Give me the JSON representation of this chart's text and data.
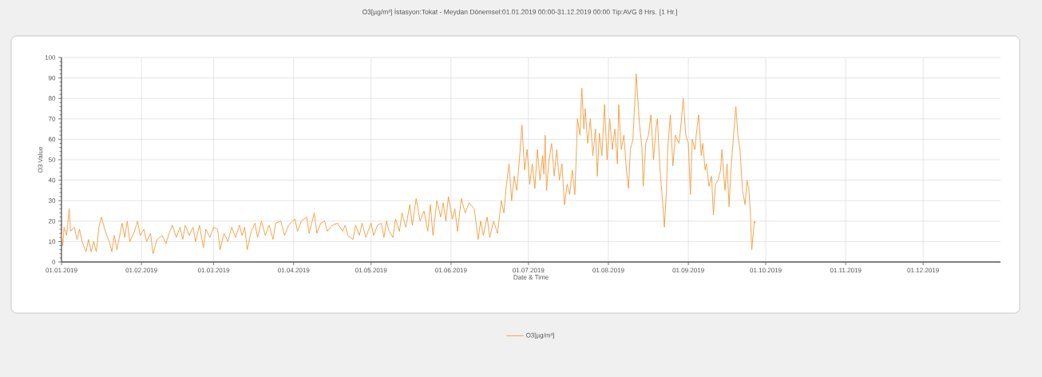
{
  "chart_data": {
    "type": "line",
    "title": "O3[µg/m³] İstasyon:Tokat - Meydan Dönemsel:01.01.2019 00:00-31.12.2019 00:00 Tip:AVG 8 Hrs. [1 Hr.]",
    "xlabel": "Date & Time",
    "ylabel": "O3 Value",
    "xlim": [
      "2019-01-01",
      "2019-12-31"
    ],
    "ylim": [
      0,
      100
    ],
    "xticks": [
      {
        "value": "2019-01-01",
        "label": "01.01.2019"
      },
      {
        "value": "2019-02-01",
        "label": "01.02.2019"
      },
      {
        "value": "2019-03-01",
        "label": "01.03.2019"
      },
      {
        "value": "2019-04-01",
        "label": "01.04.2019"
      },
      {
        "value": "2019-05-01",
        "label": "01.05.2019"
      },
      {
        "value": "2019-06-01",
        "label": "01.06.2019"
      },
      {
        "value": "2019-07-01",
        "label": "01.07.2019"
      },
      {
        "value": "2019-08-01",
        "label": "01.08.2019"
      },
      {
        "value": "2019-09-01",
        "label": "01.09.2019"
      },
      {
        "value": "2019-10-01",
        "label": "01.10.2019"
      },
      {
        "value": "2019-11-01",
        "label": "01.11.2019"
      },
      {
        "value": "2019-12-01",
        "label": "01.12.2019"
      }
    ],
    "yticks": [
      0,
      10,
      20,
      30,
      40,
      50,
      60,
      70,
      80,
      90,
      100
    ],
    "grid": true,
    "legend": "bottom",
    "x": [
      "2019-01-01",
      "2019-01-01T12:00",
      "2019-01-02",
      "2019-01-03",
      "2019-01-04",
      "2019-01-04T12:00",
      "2019-01-06",
      "2019-01-07",
      "2019-01-08",
      "2019-01-09",
      "2019-01-10T12:00",
      "2019-01-11T12:00",
      "2019-01-12T12:00",
      "2019-01-13T12:00",
      "2019-01-14T12:00",
      "2019-01-15T12:00",
      "2019-01-16T12:00",
      "2019-01-18",
      "2019-01-19T12:00",
      "2019-01-20T12:00",
      "2019-01-21T12:00",
      "2019-01-22T12:00",
      "2019-01-24T12:00",
      "2019-01-25T12:00",
      "2019-01-26T12:00",
      "2019-01-27T12:00",
      "2019-01-29",
      "2019-01-30T12:00",
      "2019-01-31T12:00",
      "2019-02-02",
      "2019-02-03",
      "2019-02-04T12:00",
      "2019-02-05T12:00",
      "2019-02-07",
      "2019-02-09",
      "2019-02-10T12:00",
      "2019-02-12",
      "2019-02-13",
      "2019-02-14T12:00",
      "2019-02-16",
      "2019-02-17",
      "2019-02-18",
      "2019-02-19T12:00",
      "2019-02-21",
      "2019-02-22",
      "2019-02-23T12:00",
      "2019-02-25",
      "2019-02-26",
      "2019-02-27T12:00",
      "2019-03-01",
      "2019-03-02T12:00",
      "2019-03-03T12:00",
      "2019-03-05",
      "2019-03-06T12:00",
      "2019-03-08",
      "2019-03-09T12:00",
      "2019-03-11",
      "2019-03-12",
      "2019-03-13",
      "2019-03-14",
      "2019-03-15T12:00",
      "2019-03-17",
      "2019-03-18",
      "2019-03-19T12:00",
      "2019-03-21",
      "2019-03-22T12:00",
      "2019-03-24",
      "2019-03-25",
      "2019-03-27",
      "2019-03-28T12:00",
      "2019-03-30",
      "2019-04-01T12:00",
      "2019-04-02T12:00",
      "2019-04-04",
      "2019-04-06",
      "2019-04-07",
      "2019-04-09",
      "2019-04-10",
      "2019-04-11T12:00",
      "2019-04-13",
      "2019-04-14",
      "2019-04-16",
      "2019-04-18",
      "2019-04-20",
      "2019-04-21",
      "2019-04-22",
      "2019-04-24",
      "2019-04-25",
      "2019-04-26T12:00",
      "2019-04-27T12:00",
      "2019-04-29",
      "2019-05-01",
      "2019-05-02",
      "2019-05-03T12:00",
      "2019-05-05",
      "2019-05-06",
      "2019-05-07",
      "2019-05-08",
      "2019-05-09T12:00",
      "2019-05-10T12:00",
      "2019-05-12",
      "2019-05-13",
      "2019-05-14T12:00",
      "2019-05-16",
      "2019-05-17",
      "2019-05-18T12:00",
      "2019-05-20",
      "2019-05-21T12:00",
      "2019-05-23",
      "2019-05-24",
      "2019-05-25",
      "2019-05-26T12:00",
      "2019-05-28",
      "2019-05-29",
      "2019-05-30",
      "2019-05-31",
      "2019-06-01T12:00",
      "2019-06-02T12:00",
      "2019-06-03T12:00",
      "2019-06-05",
      "2019-06-06T12:00",
      "2019-06-08",
      "2019-06-10",
      "2019-06-11T12:00",
      "2019-06-12T12:00",
      "2019-06-13T12:00",
      "2019-06-15",
      "2019-06-16",
      "2019-06-17T12:00",
      "2019-06-19",
      "2019-06-20T12:00",
      "2019-06-21T12:00",
      "2019-06-22T12:00",
      "2019-06-23T12:00",
      "2019-06-24T12:00",
      "2019-06-25T12:00",
      "2019-06-26T12:00",
      "2019-06-27T12:00",
      "2019-06-28T12:00",
      "2019-06-29T12:00",
      "2019-06-30T12:00",
      "2019-07-01T12:00",
      "2019-07-02T12:00",
      "2019-07-03T12:00",
      "2019-07-04T12:00",
      "2019-07-05T12:00",
      "2019-07-06T12:00",
      "2019-07-07",
      "2019-07-07T12:00",
      "2019-07-08",
      "2019-07-09",
      "2019-07-10",
      "2019-07-11",
      "2019-07-12",
      "2019-07-13",
      "2019-07-14",
      "2019-07-15",
      "2019-07-16",
      "2019-07-17",
      "2019-07-18",
      "2019-07-19",
      "2019-07-19T12:00",
      "2019-07-20",
      "2019-07-21",
      "2019-07-21T17:00",
      "2019-07-22T12:00",
      "2019-07-23",
      "2019-07-24",
      "2019-07-25",
      "2019-07-26",
      "2019-07-27",
      "2019-07-27T17:00",
      "2019-07-28T12:00",
      "2019-07-29T12:00",
      "2019-07-30T12:00",
      "2019-07-31T12:00",
      "2019-08-01T12:00",
      "2019-08-02T12:00",
      "2019-08-03T12:00",
      "2019-08-04T12:00",
      "2019-08-05",
      "2019-08-06",
      "2019-08-07",
      "2019-08-08",
      "2019-08-08T19:00",
      "2019-08-09T12:00",
      "2019-08-10T12:00",
      "2019-08-11T19:00",
      "2019-08-13",
      "2019-08-14",
      "2019-08-14T12:00",
      "2019-08-15T12:00",
      "2019-08-16T12:00",
      "2019-08-17T12:00",
      "2019-08-18T12:00",
      "2019-08-19T12:00",
      "2019-08-20",
      "2019-08-21",
      "2019-08-22",
      "2019-08-22T17:00",
      "2019-08-23T12:00",
      "2019-08-24",
      "2019-08-25",
      "2019-08-26",
      "2019-08-27",
      "2019-08-28T07:00",
      "2019-08-29",
      "2019-08-30",
      "2019-08-31",
      "2019-09-01",
      "2019-09-01T19:00",
      "2019-09-02T12:00",
      "2019-09-03T12:00",
      "2019-09-04T07:00",
      "2019-09-05",
      "2019-09-06",
      "2019-09-06T14:00",
      "2019-09-07T12:00",
      "2019-09-08",
      "2019-09-09",
      "2019-09-10",
      "2019-09-10T17:00",
      "2019-09-11T12:00",
      "2019-09-12T12:00",
      "2019-09-13T12:00",
      "2019-09-14",
      "2019-09-15T05:00",
      "2019-09-16",
      "2019-09-16T19:00",
      "2019-09-17T12:00",
      "2019-09-18T10:00",
      "2019-09-19T10:00",
      "2019-09-20T05:00",
      "2019-09-21",
      "2019-09-22",
      "2019-09-23",
      "2019-09-23T17:00",
      "2019-09-24T10:00",
      "2019-09-25",
      "2019-09-25T14:00",
      "2019-09-26T14:00",
      "2019-09-27"
    ],
    "series": [
      {
        "name": "O3[µg/m³]",
        "color": "#f39c3c",
        "values": [
          14,
          8,
          17,
          13,
          26,
          15,
          17,
          11,
          16,
          10,
          5,
          11,
          5,
          10,
          5,
          17,
          22,
          15,
          10,
          5,
          13,
          6,
          19,
          12,
          20,
          10,
          14,
          20,
          13,
          16,
          10,
          14,
          4,
          11,
          13,
          9,
          15,
          18,
          12,
          17,
          11,
          18,
          13,
          17,
          10,
          18,
          7,
          16,
          12,
          17,
          16,
          6,
          14,
          10,
          17,
          12,
          18,
          13,
          17,
          6,
          15,
          19,
          12,
          20,
          13,
          18,
          11,
          19,
          20,
          13,
          18,
          21,
          15,
          20,
          22,
          14,
          24,
          14,
          19,
          20,
          15,
          18,
          19,
          15,
          18,
          13,
          11,
          18,
          13,
          19,
          12,
          19,
          13,
          18,
          19,
          12,
          20,
          15,
          12,
          21,
          15,
          24,
          17,
          28,
          18,
          31,
          20,
          25,
          15,
          28,
          13,
          30,
          22,
          29,
          20,
          32,
          21,
          26,
          15,
          31,
          24,
          29,
          26,
          11,
          20,
          13,
          22,
          12,
          20,
          14,
          30,
          24,
          38,
          48,
          30,
          42,
          35,
          50,
          67,
          45,
          55,
          38,
          48,
          36,
          55,
          40,
          52,
          43,
          62,
          35,
          50,
          58,
          42,
          55,
          40,
          48,
          28,
          38,
          33,
          45,
          33,
          50,
          70,
          62,
          85,
          65,
          75,
          58,
          70,
          52,
          65,
          42,
          63,
          52,
          77,
          50,
          70,
          55,
          65,
          48,
          77,
          55,
          62,
          45,
          36,
          55,
          60,
          92,
          68,
          56,
          37,
          58,
          62,
          72,
          50,
          66,
          70,
          45,
          30,
          17,
          35,
          55,
          72,
          47,
          62,
          58,
          65,
          80,
          62,
          58,
          33,
          60,
          55,
          65,
          72,
          52,
          58,
          45,
          48,
          37,
          42,
          23,
          38,
          40,
          45,
          55,
          35,
          48,
          27,
          45,
          60,
          76,
          62,
          55,
          35,
          28,
          40,
          36,
          25,
          6,
          20,
          19
        ]
      }
    ]
  }
}
